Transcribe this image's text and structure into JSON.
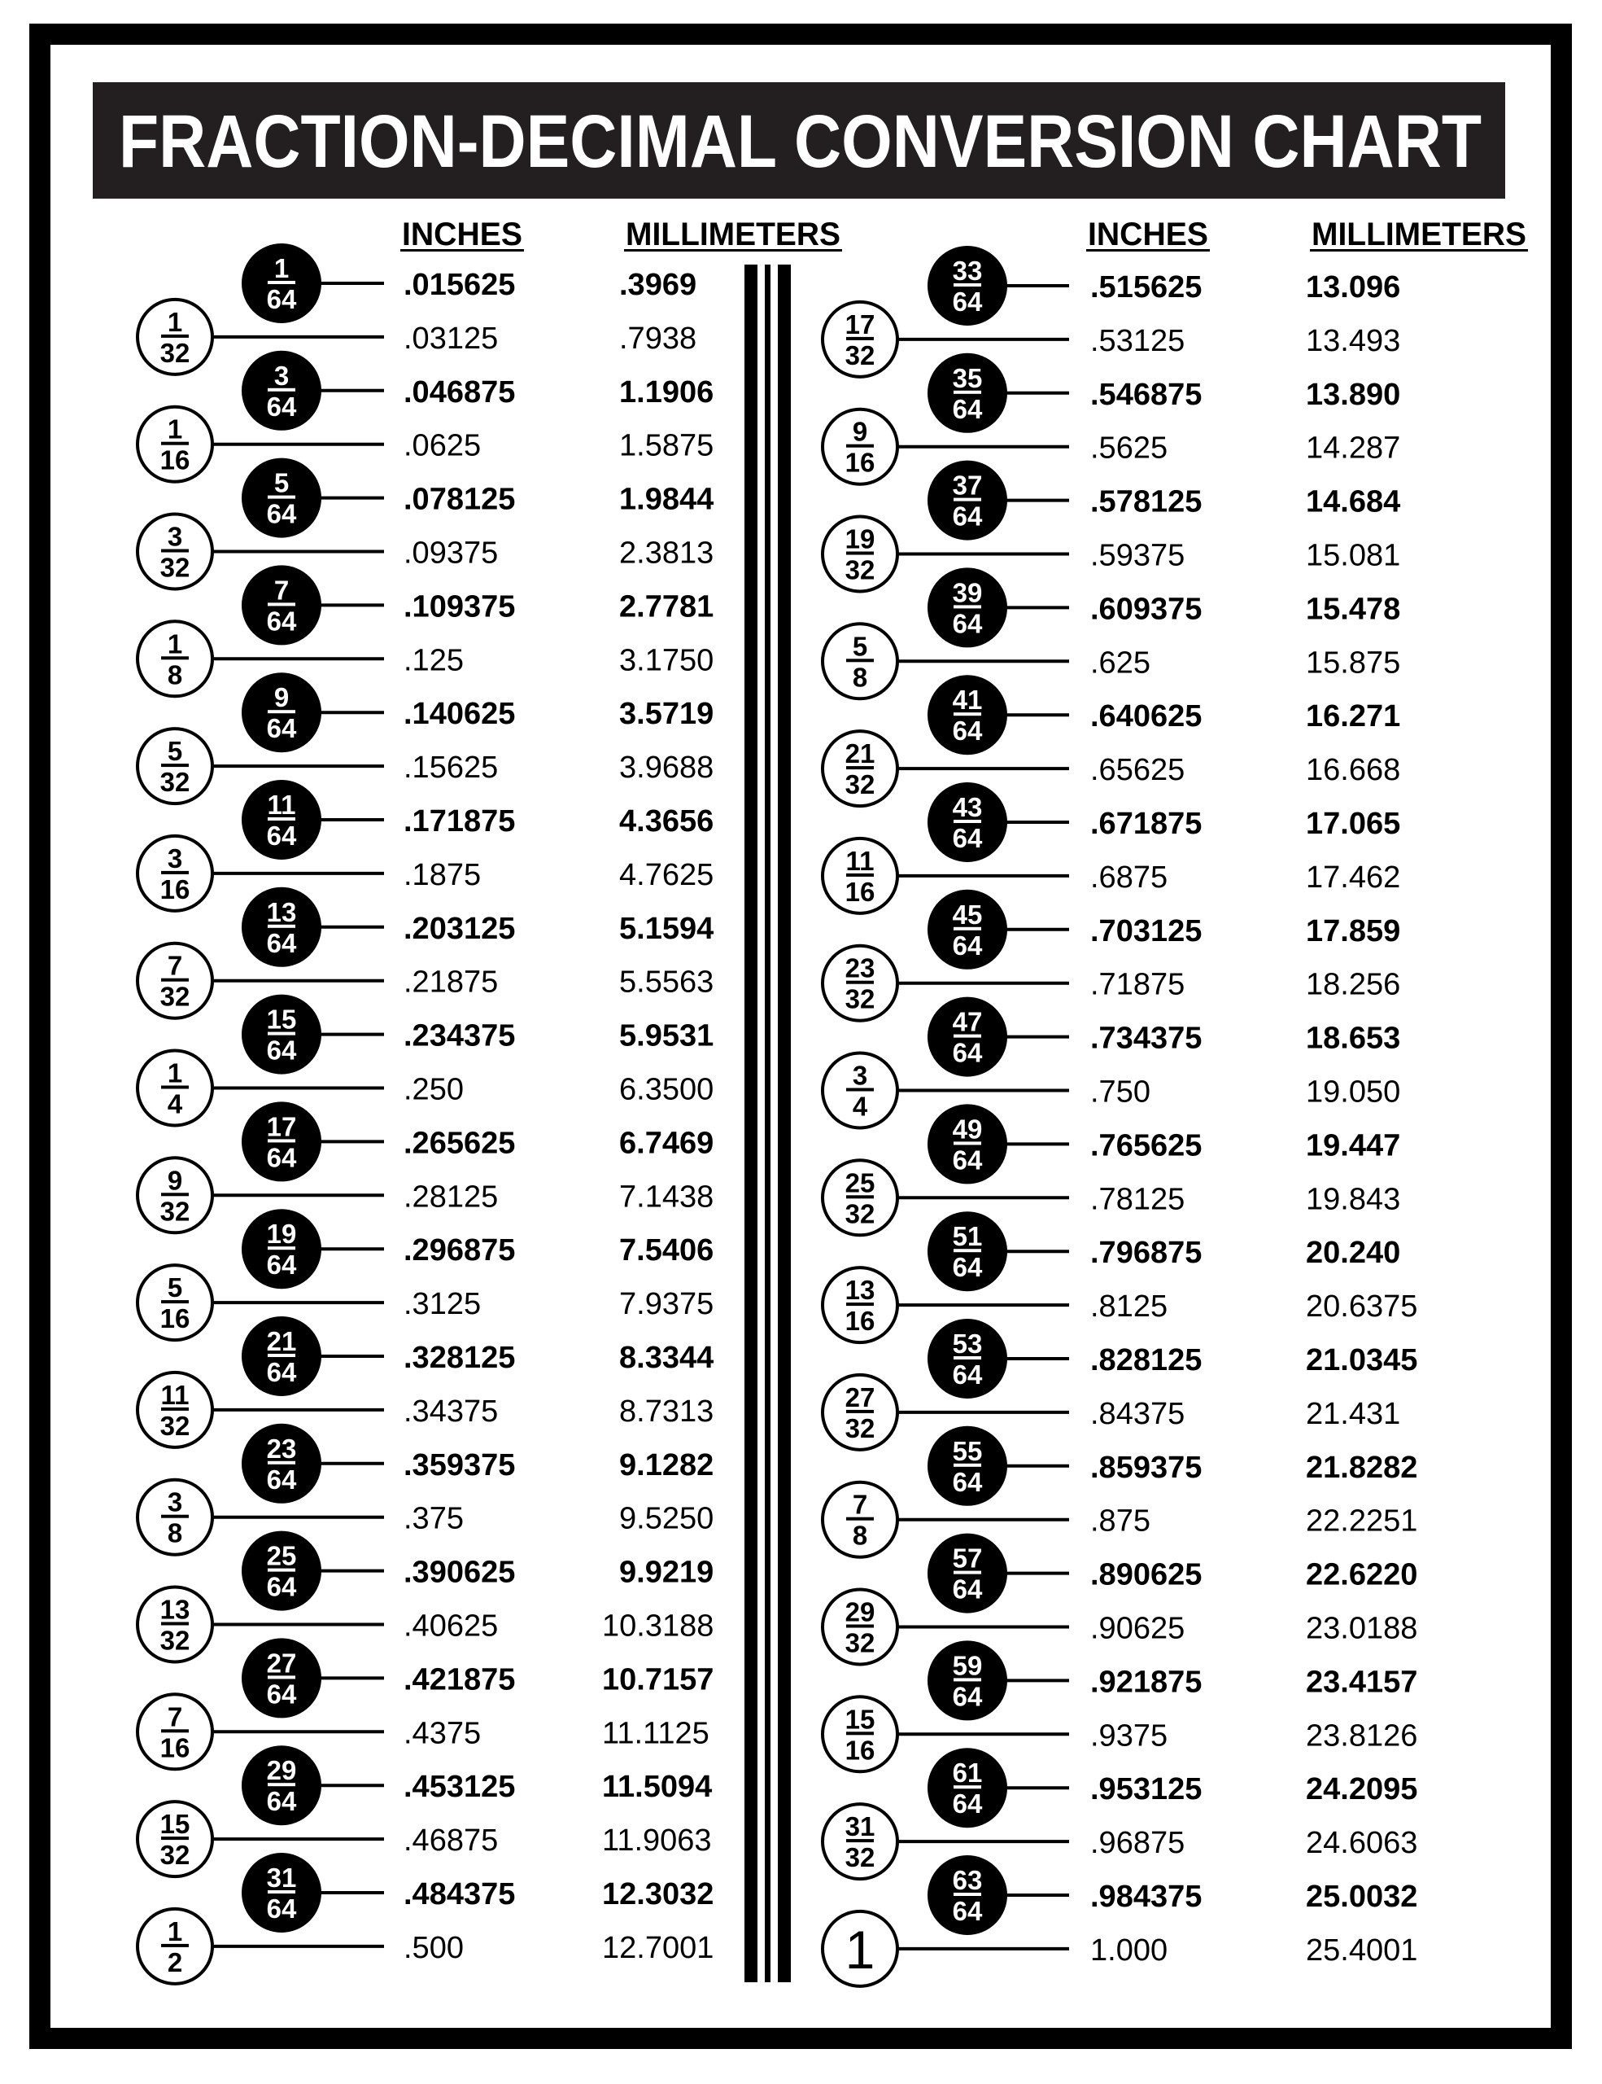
{
  "title": "FRACTION-DECIMAL CONVERSION CHART",
  "colors": {
    "ink": "#000000",
    "paper": "#ffffff"
  },
  "left": {
    "inches_header": "INCHES",
    "mm_header": "MILLIMETERS",
    "rows": [
      {
        "num": "1",
        "den": "64",
        "inches": ".015625",
        "mm": ".3969"
      },
      {
        "num": "1",
        "den": "32",
        "inches": ".03125",
        "mm": ".7938"
      },
      {
        "num": "3",
        "den": "64",
        "inches": ".046875",
        "mm": "1.1906"
      },
      {
        "num": "1",
        "den": "16",
        "inches": ".0625",
        "mm": "1.5875"
      },
      {
        "num": "5",
        "den": "64",
        "inches": ".078125",
        "mm": "1.9844"
      },
      {
        "num": "3",
        "den": "32",
        "inches": ".09375",
        "mm": "2.3813"
      },
      {
        "num": "7",
        "den": "64",
        "inches": ".109375",
        "mm": "2.7781"
      },
      {
        "num": "1",
        "den": "8",
        "inches": ".125",
        "mm": "3.1750"
      },
      {
        "num": "9",
        "den": "64",
        "inches": ".140625",
        "mm": "3.5719"
      },
      {
        "num": "5",
        "den": "32",
        "inches": ".15625",
        "mm": "3.9688"
      },
      {
        "num": "11",
        "den": "64",
        "inches": ".171875",
        "mm": "4.3656"
      },
      {
        "num": "3",
        "den": "16",
        "inches": ".1875",
        "mm": "4.7625"
      },
      {
        "num": "13",
        "den": "64",
        "inches": ".203125",
        "mm": "5.1594"
      },
      {
        "num": "7",
        "den": "32",
        "inches": ".21875",
        "mm": "5.5563"
      },
      {
        "num": "15",
        "den": "64",
        "inches": ".234375",
        "mm": "5.9531"
      },
      {
        "num": "1",
        "den": "4",
        "inches": ".250",
        "mm": "6.3500"
      },
      {
        "num": "17",
        "den": "64",
        "inches": ".265625",
        "mm": "6.7469"
      },
      {
        "num": "9",
        "den": "32",
        "inches": ".28125",
        "mm": "7.1438"
      },
      {
        "num": "19",
        "den": "64",
        "inches": ".296875",
        "mm": "7.5406"
      },
      {
        "num": "5",
        "den": "16",
        "inches": ".3125",
        "mm": "7.9375"
      },
      {
        "num": "21",
        "den": "64",
        "inches": ".328125",
        "mm": "8.3344"
      },
      {
        "num": "11",
        "den": "32",
        "inches": ".34375",
        "mm": "8.7313"
      },
      {
        "num": "23",
        "den": "64",
        "inches": ".359375",
        "mm": "9.1282"
      },
      {
        "num": "3",
        "den": "8",
        "inches": ".375",
        "mm": "9.5250"
      },
      {
        "num": "25",
        "den": "64",
        "inches": ".390625",
        "mm": "9.9219"
      },
      {
        "num": "13",
        "den": "32",
        "inches": ".40625",
        "mm": "10.3188"
      },
      {
        "num": "27",
        "den": "64",
        "inches": ".421875",
        "mm": "10.7157"
      },
      {
        "num": "7",
        "den": "16",
        "inches": ".4375",
        "mm": "11.1125"
      },
      {
        "num": "29",
        "den": "64",
        "inches": ".453125",
        "mm": "11.5094"
      },
      {
        "num": "15",
        "den": "32",
        "inches": ".46875",
        "mm": "11.9063"
      },
      {
        "num": "31",
        "den": "64",
        "inches": ".484375",
        "mm": "12.3032"
      },
      {
        "num": "1",
        "den": "2",
        "inches": ".500",
        "mm": "12.7001"
      }
    ]
  },
  "right": {
    "inches_header": "INCHES",
    "mm_header": "MILLIMETERS",
    "rows": [
      {
        "num": "33",
        "den": "64",
        "inches": ".515625",
        "mm": "13.096"
      },
      {
        "num": "17",
        "den": "32",
        "inches": ".53125",
        "mm": "13.493"
      },
      {
        "num": "35",
        "den": "64",
        "inches": ".546875",
        "mm": "13.890"
      },
      {
        "num": "9",
        "den": "16",
        "inches": ".5625",
        "mm": "14.287"
      },
      {
        "num": "37",
        "den": "64",
        "inches": ".578125",
        "mm": "14.684"
      },
      {
        "num": "19",
        "den": "32",
        "inches": ".59375",
        "mm": "15.081"
      },
      {
        "num": "39",
        "den": "64",
        "inches": ".609375",
        "mm": "15.478"
      },
      {
        "num": "5",
        "den": "8",
        "inches": ".625",
        "mm": "15.875"
      },
      {
        "num": "41",
        "den": "64",
        "inches": ".640625",
        "mm": "16.271"
      },
      {
        "num": "21",
        "den": "32",
        "inches": ".65625",
        "mm": "16.668"
      },
      {
        "num": "43",
        "den": "64",
        "inches": ".671875",
        "mm": "17.065"
      },
      {
        "num": "11",
        "den": "16",
        "inches": ".6875",
        "mm": "17.462"
      },
      {
        "num": "45",
        "den": "64",
        "inches": ".703125",
        "mm": "17.859"
      },
      {
        "num": "23",
        "den": "32",
        "inches": ".71875",
        "mm": "18.256"
      },
      {
        "num": "47",
        "den": "64",
        "inches": ".734375",
        "mm": "18.653"
      },
      {
        "num": "3",
        "den": "4",
        "inches": ".750",
        "mm": "19.050"
      },
      {
        "num": "49",
        "den": "64",
        "inches": ".765625",
        "mm": "19.447"
      },
      {
        "num": "25",
        "den": "32",
        "inches": ".78125",
        "mm": "19.843"
      },
      {
        "num": "51",
        "den": "64",
        "inches": ".796875",
        "mm": "20.240"
      },
      {
        "num": "13",
        "den": "16",
        "inches": ".8125",
        "mm": "20.6375"
      },
      {
        "num": "53",
        "den": "64",
        "inches": ".828125",
        "mm": "21.0345"
      },
      {
        "num": "27",
        "den": "32",
        "inches": ".84375",
        "mm": "21.431"
      },
      {
        "num": "55",
        "den": "64",
        "inches": ".859375",
        "mm": "21.8282"
      },
      {
        "num": "7",
        "den": "8",
        "inches": ".875",
        "mm": "22.2251"
      },
      {
        "num": "57",
        "den": "64",
        "inches": ".890625",
        "mm": "22.6220"
      },
      {
        "num": "29",
        "den": "32",
        "inches": ".90625",
        "mm": "23.0188"
      },
      {
        "num": "59",
        "den": "64",
        "inches": ".921875",
        "mm": "23.4157"
      },
      {
        "num": "15",
        "den": "16",
        "inches": ".9375",
        "mm": "23.8126"
      },
      {
        "num": "61",
        "den": "64",
        "inches": ".953125",
        "mm": "24.2095"
      },
      {
        "num": "31",
        "den": "32",
        "inches": ".96875",
        "mm": "24.6063"
      },
      {
        "num": "63",
        "den": "64",
        "inches": ".984375",
        "mm": "25.0032"
      },
      {
        "num": "1",
        "den": "",
        "inches": "1.000",
        "mm": "25.4001"
      }
    ]
  }
}
